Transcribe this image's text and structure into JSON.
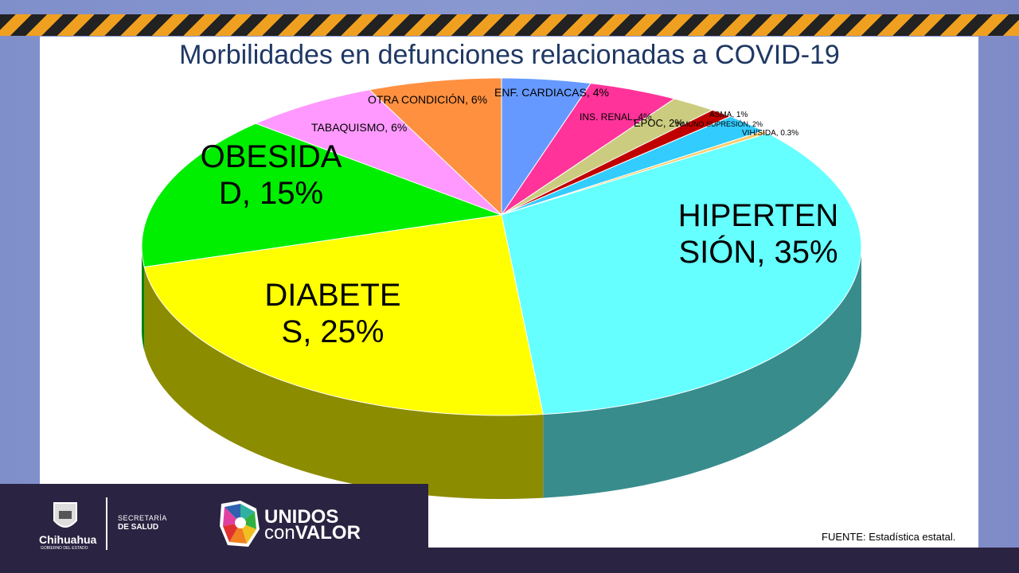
{
  "chart_data": {
    "type": "pie",
    "title": "Morbilidades en defunciones relacionadas a COVID-19",
    "slices": [
      {
        "label": "ENF. CARDIACAS, 4%",
        "value": 4,
        "color": "#6699ff"
      },
      {
        "label": "INS. RENAL, 4%",
        "value": 4,
        "color": "#ff3399"
      },
      {
        "label": "EPOC, 2%",
        "value": 2,
        "color": "#cccc80"
      },
      {
        "label": "ASMA, 1%",
        "value": 1,
        "color": "#c00000"
      },
      {
        "label": "INMUNO SUPRESIÓN, 2%",
        "value": 2,
        "color": "#33ccff"
      },
      {
        "label": "VIH/SIDA,  0.3%",
        "value": 0.3,
        "color": "#ffcc66"
      },
      {
        "label": "HIPERTENSIÓN, 35%",
        "value": 35,
        "color": "#66ffff"
      },
      {
        "label": "DIABETES, 25%",
        "value": 25,
        "color": "#ffff00"
      },
      {
        "label": "OBESIDAD, 15%",
        "value": 15,
        "color": "#00ee00"
      },
      {
        "label": "TABAQUISMO, 6%",
        "value": 6,
        "color": "#ff99ff"
      },
      {
        "label": "OTRA CONDICIÓN, 6%",
        "value": 6,
        "color": "#ff9040"
      }
    ],
    "style": "3d"
  },
  "source": "FUENTE:  Estadística estatal.",
  "footer": {
    "gov": "Chihuahua",
    "gov_sub": "GOBIERNO DEL ESTADO",
    "dept_1": "SECRETARÍA",
    "dept_2": "DE SALUD",
    "campaign_1": "UNIDOS",
    "campaign_2a": "con",
    "campaign_2b": "VALOR"
  }
}
